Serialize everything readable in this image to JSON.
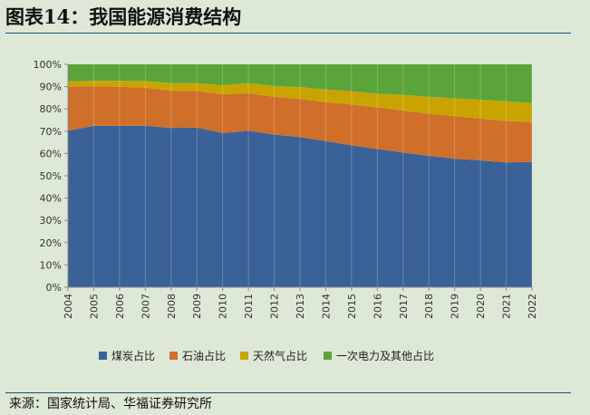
{
  "header": {
    "title": "图表14：我国能源消费结构"
  },
  "footer": {
    "source": "来源：国家统计局、华福证券研究所"
  },
  "chart_data": {
    "type": "area",
    "stacked": true,
    "percent": true,
    "x": [
      "2004",
      "2005",
      "2006",
      "2007",
      "2008",
      "2009",
      "2010",
      "2011",
      "2012",
      "2013",
      "2014",
      "2015",
      "2016",
      "2017",
      "2018",
      "2019",
      "2020",
      "2021",
      "2022"
    ],
    "ylim": [
      0,
      100
    ],
    "yticks": [
      "0%",
      "10%",
      "20%",
      "30%",
      "40%",
      "50%",
      "60%",
      "70%",
      "80%",
      "90%",
      "100%"
    ],
    "series": [
      {
        "name": "煤炭占比",
        "color": "#3a6298",
        "values": [
          70.2,
          72.4,
          72.4,
          72.5,
          71.5,
          71.6,
          69.2,
          70.2,
          68.5,
          67.4,
          65.6,
          63.7,
          62.0,
          60.4,
          59.0,
          57.7,
          56.9,
          56.0,
          56.2
        ]
      },
      {
        "name": "石油占比",
        "color": "#cf6f2a",
        "values": [
          19.9,
          17.8,
          17.5,
          17.0,
          16.7,
          16.4,
          17.4,
          16.8,
          17.0,
          17.1,
          17.4,
          18.3,
          18.7,
          18.9,
          18.9,
          19.0,
          18.8,
          18.6,
          17.9
        ]
      },
      {
        "name": "天然气占比",
        "color": "#c9a400",
        "values": [
          2.3,
          2.4,
          2.7,
          3.0,
          3.4,
          3.5,
          4.0,
          4.6,
          4.8,
          5.3,
          5.7,
          5.9,
          6.1,
          7.0,
          7.6,
          8.0,
          8.4,
          8.8,
          8.5
        ]
      },
      {
        "name": "一次电力及其他占比",
        "color": "#5aa43a",
        "values": [
          7.6,
          7.4,
          7.4,
          7.5,
          8.4,
          8.5,
          9.4,
          8.4,
          9.7,
          10.2,
          11.3,
          12.1,
          13.2,
          13.7,
          14.5,
          15.3,
          15.9,
          16.6,
          17.4
        ]
      }
    ],
    "grid": true,
    "legend": "bottom"
  }
}
